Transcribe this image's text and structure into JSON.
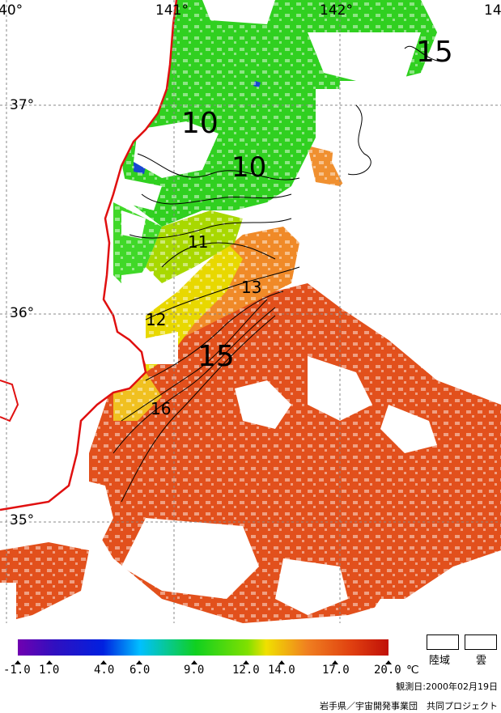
{
  "grid": {
    "longitudes": [
      "40°",
      "141°",
      "142°",
      "14"
    ],
    "latitudes": [
      "37°",
      "36°",
      "35°"
    ]
  },
  "contours": {
    "labels": [
      "10",
      "10",
      "11",
      "12",
      "13",
      "15",
      "15",
      "16"
    ]
  },
  "legend": {
    "ticks": [
      "-1.0",
      "1.0",
      "4.0",
      "6.0",
      "9.0",
      "12.0",
      "14.0",
      "17.0",
      "20.0"
    ],
    "unit": "℃",
    "land_label": "陸域",
    "cloud_label": "雲",
    "colors": {
      "purple": "#7000b0",
      "blue": "#0020e0",
      "cyan": "#00c0ff",
      "green": "#10d020",
      "lightgreen": "#80e000",
      "yellow": "#f0e000",
      "orange": "#f08020",
      "red": "#e04010",
      "darkred": "#c01008"
    }
  },
  "observation": "観測日:2000年02月19日",
  "credit": "岩手県／宇宙開発事業団　共同プロジェクト"
}
